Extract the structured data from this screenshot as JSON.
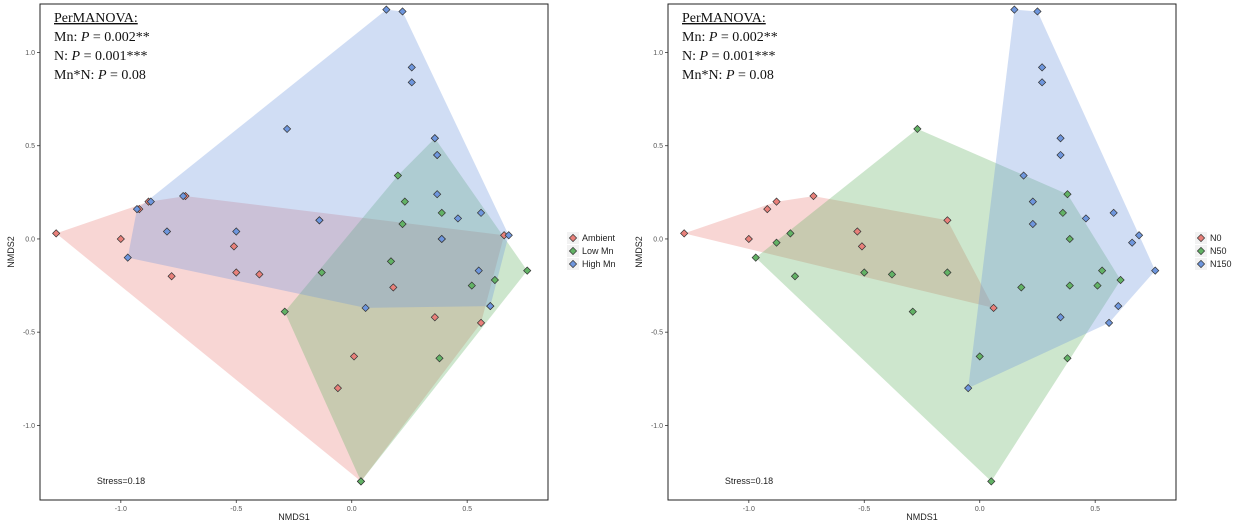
{
  "chart_data": [
    {
      "type": "scatter",
      "xlabel": "NMDS1",
      "ylabel": "NMDS2",
      "xlim": [
        -1.35,
        0.85
      ],
      "ylim": [
        -1.4,
        1.26
      ],
      "xticks": [
        -1.0,
        -0.5,
        0.0,
        0.5
      ],
      "yticks": [
        -1.0,
        -0.5,
        0.0,
        0.5,
        1.0
      ],
      "xtick_labels": [
        "-1.0",
        "-0.5",
        "0.0",
        "0.5"
      ],
      "ytick_labels": [
        "-1.0",
        "-0.5",
        "0.0",
        "0.5",
        "1.0"
      ],
      "stats_lines": [
        [
          "PerMANOVA:"
        ],
        [
          "Mn: ",
          "P",
          " = 0.002**"
        ],
        [
          "N: ",
          "P",
          " = 0.001***"
        ],
        [
          "Mn*N: ",
          "P",
          " = 0.08"
        ]
      ],
      "stress": "Stress=0.18",
      "legend": "right",
      "hull": true,
      "series": [
        {
          "name": "Ambient",
          "color": "#E8807A",
          "fill": "#F4C4C1",
          "points": [
            [
              -1.28,
              0.03
            ],
            [
              -1.0,
              0.0
            ],
            [
              -0.92,
              0.16
            ],
            [
              -0.88,
              0.2
            ],
            [
              -0.78,
              -0.2
            ],
            [
              -0.72,
              0.23
            ],
            [
              -0.51,
              -0.04
            ],
            [
              -0.5,
              -0.18
            ],
            [
              -0.4,
              -0.19
            ],
            [
              -0.14,
              0.1
            ],
            [
              -0.06,
              -0.8
            ],
            [
              0.01,
              -0.63
            ],
            [
              0.04,
              -1.3
            ],
            [
              0.18,
              -0.26
            ],
            [
              0.36,
              -0.42
            ],
            [
              0.56,
              -0.45
            ],
            [
              0.66,
              0.02
            ]
          ]
        },
        {
          "name": "Low Mn",
          "color": "#62B265",
          "fill": "#BFE0BB",
          "points": [
            [
              -0.29,
              -0.39
            ],
            [
              -0.13,
              -0.18
            ],
            [
              0.04,
              -1.3
            ],
            [
              0.17,
              -0.12
            ],
            [
              0.2,
              0.34
            ],
            [
              0.22,
              0.08
            ],
            [
              0.23,
              0.2
            ],
            [
              0.36,
              0.54
            ],
            [
              0.37,
              0.45
            ],
            [
              0.38,
              -0.64
            ],
            [
              0.39,
              0.14
            ],
            [
              0.39,
              0.0
            ],
            [
              0.52,
              -0.25
            ],
            [
              0.6,
              -0.36
            ],
            [
              0.62,
              -0.22
            ],
            [
              0.76,
              -0.17
            ]
          ]
        },
        {
          "name": "High Mn",
          "color": "#6E96DD",
          "fill": "#C3D4F4",
          "points": [
            [
              -0.97,
              -0.1
            ],
            [
              -0.93,
              0.16
            ],
            [
              -0.87,
              0.2
            ],
            [
              -0.8,
              0.04
            ],
            [
              -0.73,
              0.23
            ],
            [
              -0.5,
              0.04
            ],
            [
              -0.28,
              0.59
            ],
            [
              -0.14,
              0.1
            ],
            [
              0.06,
              -0.37
            ],
            [
              0.15,
              1.23
            ],
            [
              0.22,
              1.22
            ],
            [
              0.26,
              0.92
            ],
            [
              0.26,
              0.84
            ],
            [
              0.36,
              0.54
            ],
            [
              0.37,
              0.45
            ],
            [
              0.37,
              0.24
            ],
            [
              0.39,
              0.0
            ],
            [
              0.46,
              0.11
            ],
            [
              0.55,
              -0.17
            ],
            [
              0.56,
              0.14
            ],
            [
              0.6,
              -0.36
            ],
            [
              0.68,
              0.02
            ]
          ]
        }
      ]
    },
    {
      "type": "scatter",
      "xlabel": "NMDS1",
      "ylabel": "NMDS2",
      "xlim": [
        -1.35,
        0.85
      ],
      "ylim": [
        -1.4,
        1.26
      ],
      "xticks": [
        -1.0,
        -0.5,
        0.0,
        0.5
      ],
      "yticks": [
        -1.0,
        -0.5,
        0.0,
        0.5,
        1.0
      ],
      "xtick_labels": [
        "-1.0",
        "-0.5",
        "0.0",
        "0.5"
      ],
      "ytick_labels": [
        "-1.0",
        "-0.5",
        "0.0",
        "0.5",
        "1.0"
      ],
      "stats_lines": [
        [
          "PerMANOVA:"
        ],
        [
          "Mn: ",
          "P",
          " = 0.002**"
        ],
        [
          "N: ",
          "P",
          " = 0.001***"
        ],
        [
          "Mn*N: ",
          "P",
          " = 0.08"
        ]
      ],
      "stress": "Stress=0.18",
      "legend": "right",
      "hull": true,
      "series": [
        {
          "name": "N0",
          "color": "#E8807A",
          "fill": "#F4C4C1",
          "points": [
            [
              -1.28,
              0.03
            ],
            [
              -1.0,
              0.0
            ],
            [
              -0.92,
              0.16
            ],
            [
              -0.88,
              0.2
            ],
            [
              -0.72,
              0.23
            ],
            [
              -0.53,
              0.04
            ],
            [
              -0.51,
              -0.04
            ],
            [
              -0.14,
              0.1
            ],
            [
              0.06,
              -0.37
            ]
          ]
        },
        {
          "name": "N50",
          "color": "#62B265",
          "fill": "#BFE0BB",
          "points": [
            [
              -0.97,
              -0.1
            ],
            [
              -0.88,
              -0.02
            ],
            [
              -0.82,
              0.03
            ],
            [
              -0.8,
              -0.2
            ],
            [
              -0.5,
              -0.18
            ],
            [
              -0.38,
              -0.19
            ],
            [
              -0.29,
              -0.39
            ],
            [
              -0.27,
              0.59
            ],
            [
              -0.14,
              -0.18
            ],
            [
              0.0,
              -0.63
            ],
            [
              0.05,
              -1.3
            ],
            [
              0.18,
              -0.26
            ],
            [
              0.36,
              0.14
            ],
            [
              0.38,
              0.24
            ],
            [
              0.38,
              -0.64
            ],
            [
              0.39,
              -0.25
            ],
            [
              0.39,
              0.0
            ],
            [
              0.51,
              -0.25
            ],
            [
              0.53,
              -0.17
            ],
            [
              0.61,
              -0.22
            ]
          ]
        },
        {
          "name": "N150",
          "color": "#6E96DD",
          "fill": "#C3D4F4",
          "points": [
            [
              -0.05,
              -0.8
            ],
            [
              0.15,
              1.23
            ],
            [
              0.19,
              0.34
            ],
            [
              0.23,
              0.2
            ],
            [
              0.23,
              0.08
            ],
            [
              0.25,
              1.22
            ],
            [
              0.27,
              0.92
            ],
            [
              0.27,
              0.84
            ],
            [
              0.35,
              0.54
            ],
            [
              0.35,
              0.45
            ],
            [
              0.35,
              -0.42
            ],
            [
              0.46,
              0.11
            ],
            [
              0.56,
              -0.45
            ],
            [
              0.58,
              0.14
            ],
            [
              0.6,
              -0.36
            ],
            [
              0.66,
              -0.02
            ],
            [
              0.69,
              0.02
            ],
            [
              0.76,
              -0.17
            ]
          ]
        }
      ]
    }
  ]
}
